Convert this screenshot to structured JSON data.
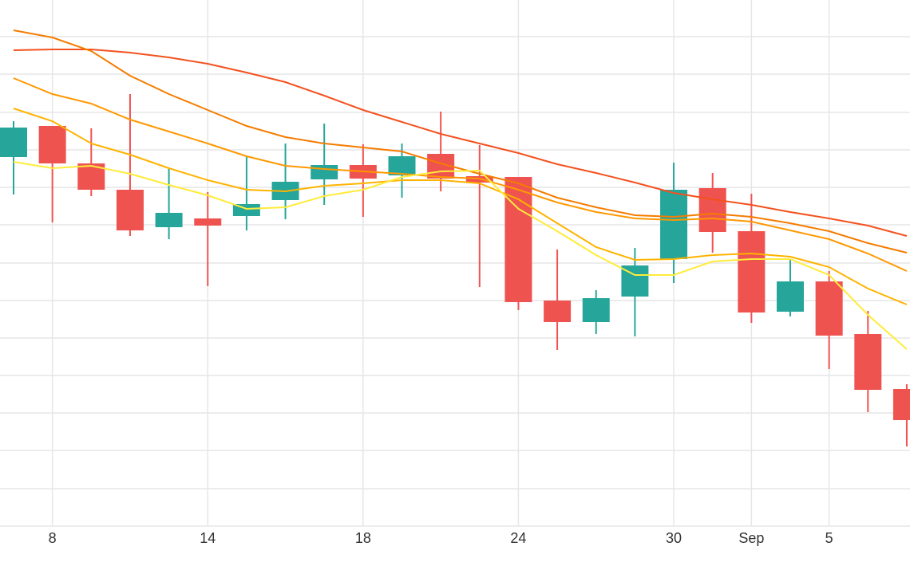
{
  "chart_data": {
    "type": "candlestick",
    "categories": [
      null,
      "8",
      null,
      null,
      null,
      "14",
      null,
      null,
      null,
      "18",
      null,
      null,
      null,
      "24",
      null,
      null,
      null,
      "30",
      null,
      "Sep",
      null,
      "5",
      null,
      null
    ],
    "open": [
      463,
      502,
      455,
      422,
      375,
      386,
      389,
      409,
      435,
      453,
      440,
      467,
      439,
      438,
      283,
      256,
      288,
      335,
      424,
      370,
      269,
      307,
      241,
      172
    ],
    "high": [
      508,
      502,
      499,
      542,
      448,
      419,
      464,
      480,
      505,
      479,
      480,
      520,
      478,
      438,
      347,
      296,
      349,
      456,
      443,
      417,
      334,
      320,
      270,
      178
    ],
    "low": [
      416,
      381,
      414,
      364,
      360,
      301,
      371,
      385,
      403,
      388,
      412,
      420,
      300,
      271,
      221,
      241,
      238,
      305,
      343,
      255,
      263,
      197,
      143,
      100
    ],
    "close": [
      500,
      455,
      422,
      371,
      393,
      377,
      404,
      432,
      453,
      436,
      464,
      436,
      431,
      281,
      256,
      286,
      327,
      422,
      369,
      268,
      307,
      239,
      171,
      133
    ],
    "up_color": "#26a69a",
    "down_color": "#ef5350",
    "overlays": [
      {
        "color": "#f4511e",
        "values": [
          597,
          598,
          598,
          594,
          588,
          580,
          569,
          557,
          540,
          522,
          507,
          492,
          480,
          468,
          454,
          443,
          431,
          418,
          410,
          403,
          394,
          386,
          377,
          364
        ]
      },
      {
        "color": "#f57c00",
        "values": [
          622,
          613,
          596,
          565,
          542,
          522,
          502,
          488,
          480,
          475,
          470,
          455,
          442,
          430,
          412,
          400,
          390,
          388,
          392,
          388,
          380,
          370,
          355,
          343
        ]
      },
      {
        "color": "#ff9800",
        "values": [
          562,
          542,
          530,
          510,
          495,
          480,
          464,
          452,
          448,
          445,
          442,
          438,
          436,
          422,
          406,
          394,
          386,
          384,
          386,
          382,
          371,
          360,
          342,
          320
        ]
      },
      {
        "color": "#ffb300",
        "values": [
          524,
          508,
          480,
          466,
          449,
          434,
          422,
          420,
          427,
          430,
          434,
          434,
          430,
          410,
          380,
          350,
          334,
          335,
          340,
          342,
          338,
          325,
          298,
          278
        ]
      },
      {
        "color": "#ffeb3b",
        "values": [
          457,
          449,
          452,
          442,
          428,
          415,
          398,
          400,
          414,
          422,
          438,
          445,
          446,
          398,
          370,
          340,
          315,
          315,
          332,
          335,
          335,
          315,
          265,
          222
        ]
      }
    ],
    "ylim": [
      0,
      660
    ],
    "yticks": [
      0,
      47,
      95,
      142,
      189,
      236,
      283,
      330,
      378,
      425,
      472,
      519,
      567,
      614
    ],
    "grid": true
  }
}
